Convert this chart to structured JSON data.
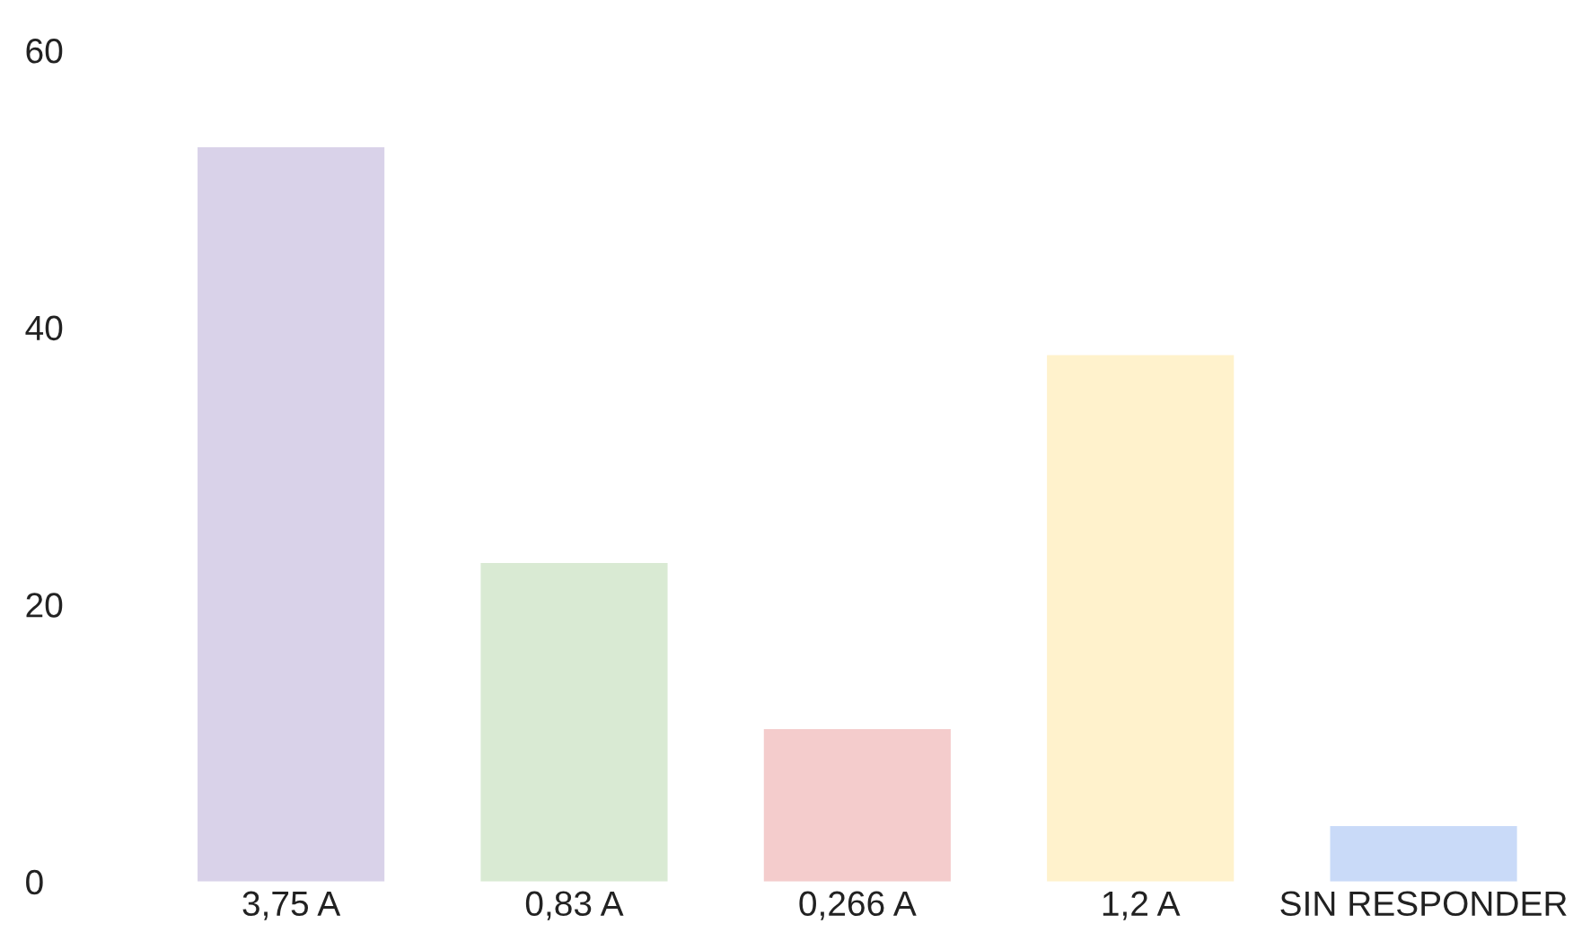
{
  "chart_data": {
    "type": "bar",
    "categories": [
      "3,75 A",
      "0,83 A",
      "0,266 A",
      "1,2 A",
      "SIN RESPONDER"
    ],
    "values": [
      53,
      23,
      11,
      38,
      4
    ],
    "colors": [
      "#d9d2e9",
      "#d9ead3",
      "#f4cccc",
      "#fff2cc",
      "#c9daf8"
    ],
    "ylim": [
      0,
      60
    ],
    "yticks": [
      0,
      20,
      40,
      60
    ],
    "grid": false,
    "legend": false
  }
}
